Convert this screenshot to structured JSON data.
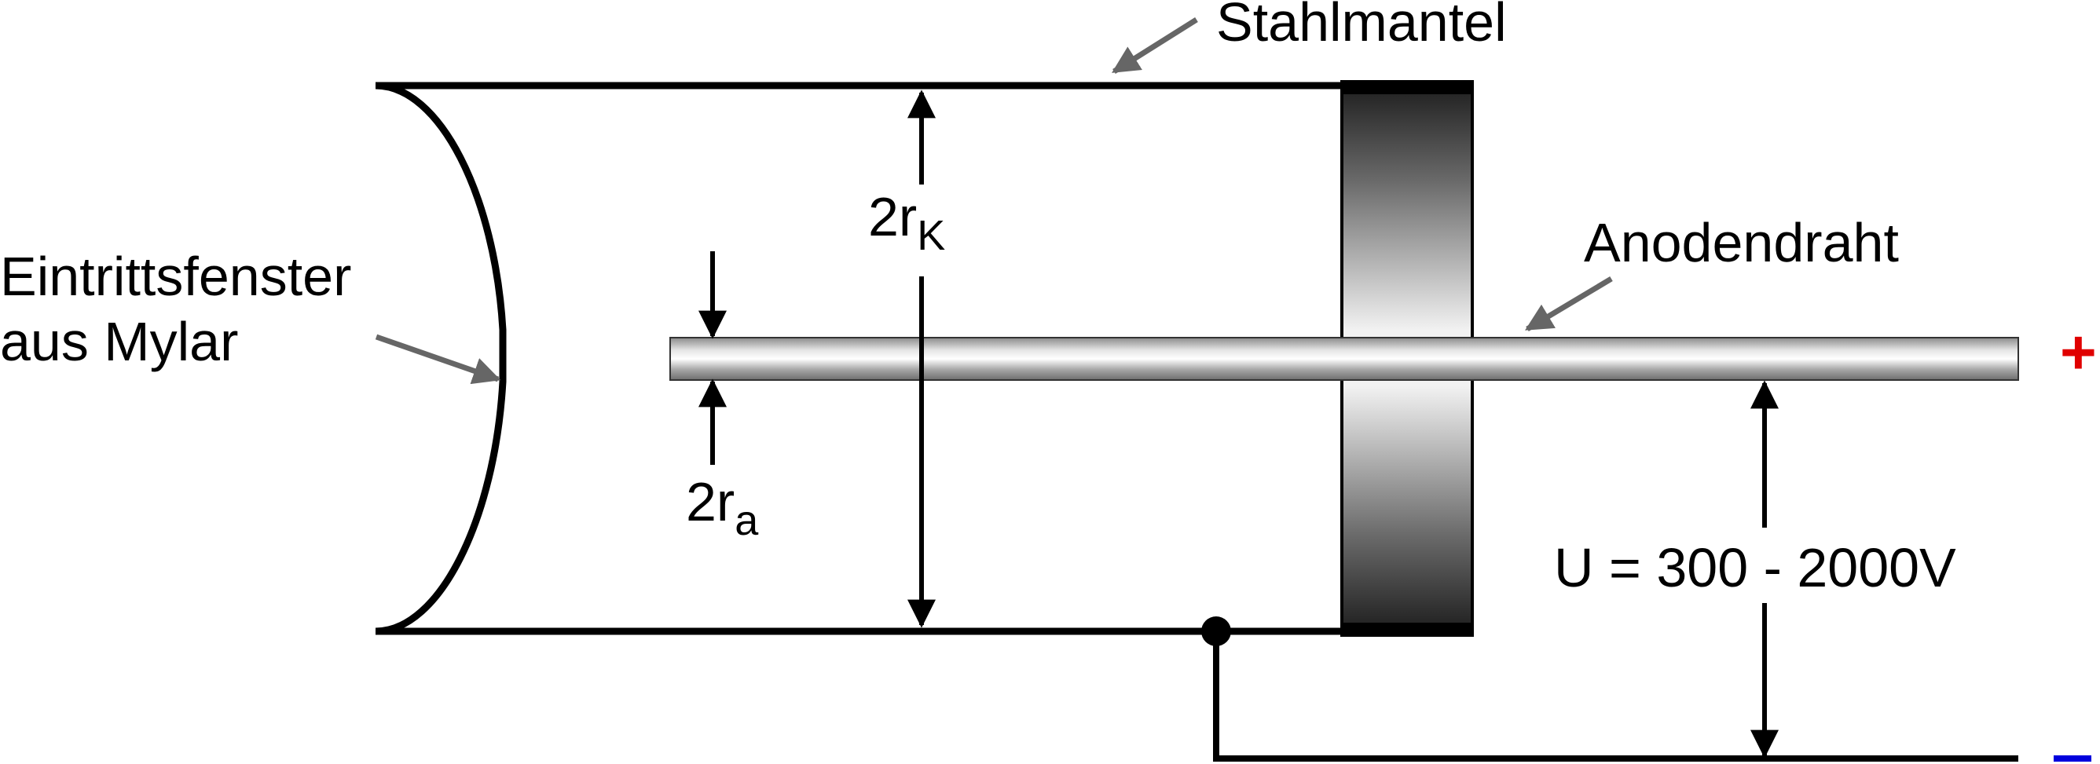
{
  "labels": {
    "stahlmantel": "Stahlmantel",
    "anodendraht": "Anodendraht",
    "window_line1": "Eintrittsfenster",
    "window_line2": "aus Mylar",
    "rk_base": "2r",
    "rk_sub": "K",
    "ra_base": "2r",
    "ra_sub": "a",
    "voltage": "U = 300 - 2000V",
    "plus": "+",
    "minus": "–"
  },
  "colors": {
    "outline": "#000000",
    "pointer": "#666666",
    "plus": "#e00000",
    "minus": "#0000dd"
  }
}
